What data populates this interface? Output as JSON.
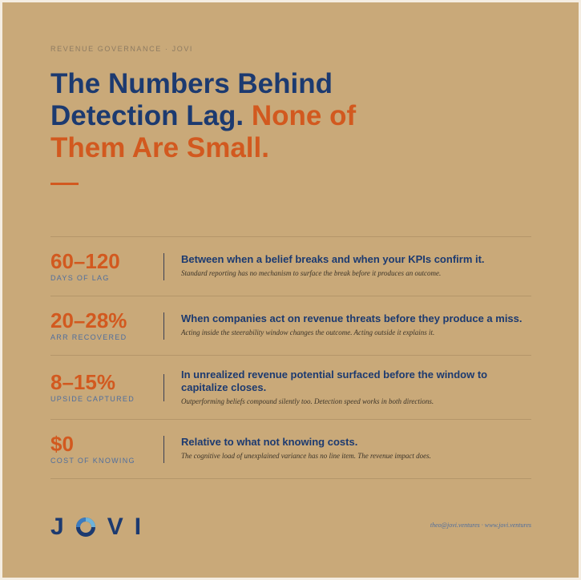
{
  "header": {
    "eyebrow": "REVENUE GOVERNANCE · JOVI",
    "title_main": "The Numbers Behind Detection Lag.",
    "title_accent": "None of Them Are Small."
  },
  "stats": [
    {
      "figure": "60–120",
      "label": "DAYS OF LAG",
      "headline": "Between when a belief breaks and when your KPIs confirm it.",
      "note": "Standard reporting has no mechanism to surface the break before it produces an outcome."
    },
    {
      "figure": "20–28%",
      "label": "ARR RECOVERED",
      "headline": "When companies act on revenue threats before they produce a miss.",
      "note": "Acting inside the steerability window changes the outcome. Acting outside it explains it."
    },
    {
      "figure": "8–15%",
      "label": "UPSIDE CAPTURED",
      "headline": "In unrealized revenue potential surfaced before the window to capitalize closes.",
      "note": "Outperforming beliefs compound silently too. Detection speed works in both directions."
    },
    {
      "figure": "$0",
      "label": "COST OF KNOWING",
      "headline": "Relative to what not knowing costs.",
      "note": "The cognitive load of unexplained variance has no line item. The revenue impact does."
    }
  ],
  "footer": {
    "logo_letters": [
      "J",
      "V",
      "I"
    ],
    "contact": "theo@jovi.ventures · www.jovi.ventures"
  }
}
